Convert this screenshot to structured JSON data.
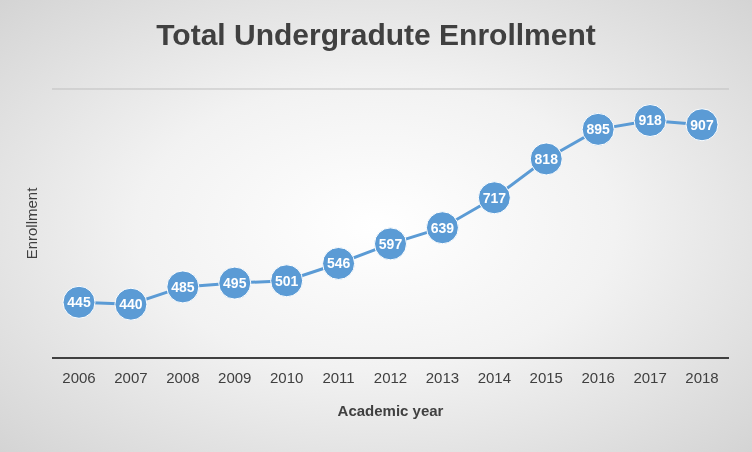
{
  "chart_data": {
    "type": "line",
    "title": "Total Undergradute Enrollment",
    "x_label": "Academic year",
    "y_label": "Enrollment",
    "categories": [
      "2006",
      "2007",
      "2008",
      "2009",
      "2010",
      "2011",
      "2012",
      "2013",
      "2014",
      "2015",
      "2016",
      "2017",
      "2018"
    ],
    "values": [
      445,
      440,
      485,
      495,
      501,
      546,
      597,
      639,
      717,
      818,
      895,
      918,
      907
    ],
    "color": "#5b9bd5",
    "marker": "circle",
    "ylim": [
      300,
      1000
    ],
    "yticks": [
      300,
      400,
      500,
      600,
      700,
      800,
      900,
      1000
    ],
    "grid": true,
    "data_labels": true,
    "tick_labels": "x"
  }
}
